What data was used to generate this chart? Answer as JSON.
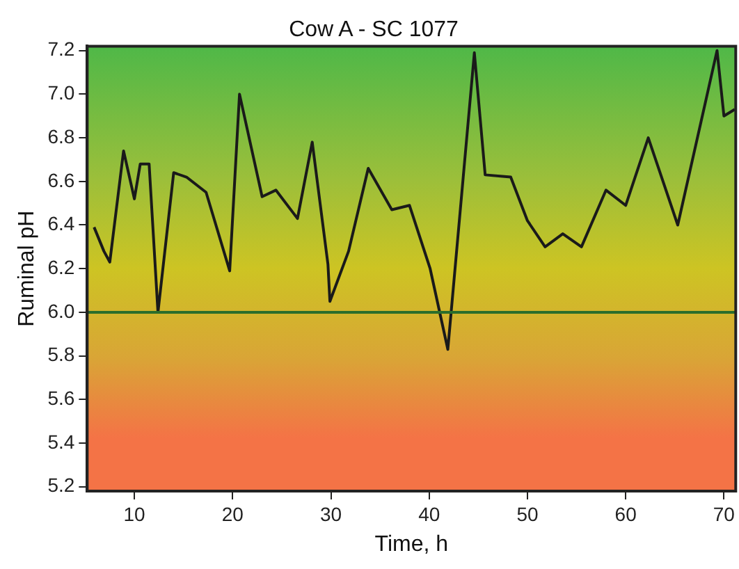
{
  "chart_data": {
    "type": "line",
    "title": "Cow A - SC 1077",
    "xlabel": "Time, h",
    "ylabel": "Ruminal pH",
    "x": [
      5.9,
      6.9,
      7.5,
      8.9,
      10.0,
      10.6,
      11.5,
      12.4,
      14.0,
      15.3,
      17.3,
      19.7,
      20.7,
      23.0,
      24.4,
      26.6,
      28.1,
      29.7,
      29.9,
      31.8,
      33.8,
      36.2,
      38.0,
      40.1,
      41.9,
      44.6,
      45.7,
      48.3,
      50.0,
      51.8,
      53.6,
      55.5,
      58.0,
      60.0,
      62.3,
      65.3,
      69.3,
      70.0,
      71.1
    ],
    "series": [
      {
        "color": "#1a1a1a",
        "values": [
          6.39,
          6.28,
          6.23,
          6.74,
          6.52,
          6.68,
          6.68,
          6.0,
          6.64,
          6.62,
          6.55,
          6.19,
          7.0,
          6.53,
          6.56,
          6.43,
          6.78,
          6.22,
          6.05,
          6.28,
          6.66,
          6.47,
          6.49,
          6.2,
          5.83,
          7.19,
          6.63,
          6.62,
          6.42,
          6.3,
          6.36,
          6.3,
          6.56,
          6.49,
          6.8,
          6.4,
          7.2,
          6.9,
          6.93
        ]
      }
    ],
    "xlim": [
      5.2,
      71.2
    ],
    "ylim": [
      5.18,
      7.22
    ],
    "xticks": [
      10,
      20,
      30,
      40,
      50,
      60,
      70
    ],
    "yticks": [
      5.2,
      5.4,
      5.6,
      5.8,
      {
        "value": 6,
        "label": "6.0"
      },
      6.2,
      6.4,
      6.6,
      6.8,
      {
        "value": 7,
        "label": "7.0"
      },
      7.2
    ],
    "ref_lines": [
      {
        "axis": "y",
        "value": 6,
        "color": "#2b6e2b"
      }
    ],
    "grid": false,
    "legend": false,
    "marker": "none",
    "line_style": "solid"
  }
}
